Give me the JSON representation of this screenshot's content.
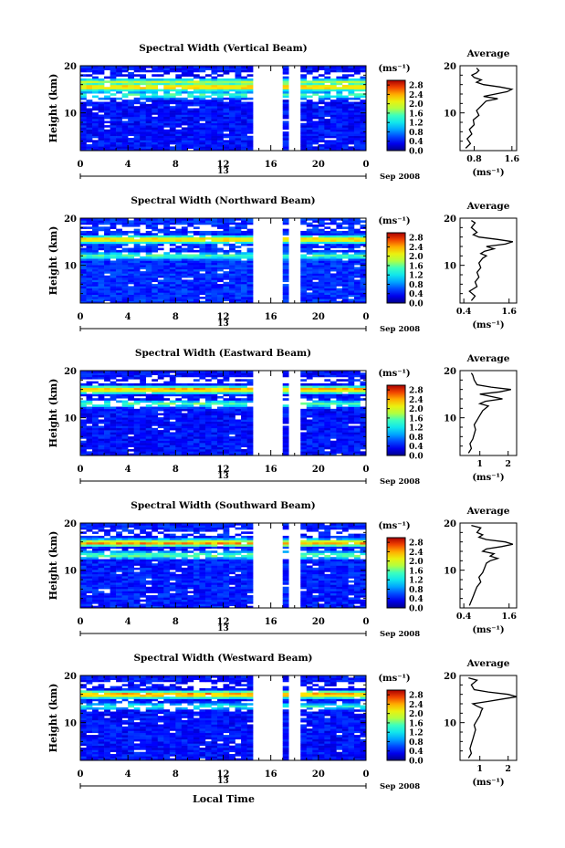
{
  "figure": {
    "xlabel": "Local Time",
    "date_label": "Sep 2008",
    "day_label": "13",
    "unit_label": "(ms⁻¹)",
    "profile_title": "Average",
    "ylabel": "Height (km)"
  },
  "chart_data": [
    {
      "type": "heatmap",
      "title": "Spectral Width (Vertical Beam)",
      "xlabel": "Local Time",
      "ylabel": "Height (km)",
      "x_ticks": [
        "0",
        "4",
        "8",
        "12",
        "16",
        "20",
        "0"
      ],
      "y_ticks": [
        "10",
        "20"
      ],
      "xlim": [
        0,
        24
      ],
      "ylim": [
        2,
        20
      ],
      "colorbar": {
        "label": "(ms⁻¹)",
        "ticks": [
          "0.0",
          "0.4",
          "0.8",
          "1.2",
          "1.6",
          "2.0",
          "2.4",
          "2.8"
        ],
        "range": [
          0,
          3.0
        ]
      },
      "data_gaps_hours": [
        [
          14.5,
          16.8
        ],
        [
          17.4,
          18.6
        ]
      ],
      "layers": [
        {
          "height_km": 15.5,
          "value": 2.6
        },
        {
          "height_km": 16.5,
          "value": 2.0
        },
        {
          "height_km": 13.8,
          "value": 1.6
        }
      ],
      "background_value": 0.4,
      "average_profile": {
        "title": "Average",
        "xlabel": "(ms⁻¹)",
        "xticks": [
          "0.8",
          "1.6"
        ],
        "xlim": [
          0.5,
          1.7
        ],
        "height_km": [
          2.5,
          3.5,
          4.5,
          5.5,
          6.5,
          7.5,
          8.5,
          9.5,
          10.5,
          11.5,
          12.5,
          13,
          13.5,
          14,
          14.5,
          15,
          15.5,
          16,
          16.5,
          17,
          17.5,
          18,
          18.5,
          19,
          19.5
        ],
        "values": [
          0.62,
          0.72,
          0.65,
          0.75,
          0.7,
          0.8,
          0.78,
          0.9,
          0.85,
          0.95,
          1.05,
          1.3,
          1.0,
          1.25,
          1.5,
          1.6,
          1.35,
          1.0,
          0.85,
          0.95,
          0.8,
          0.75,
          0.85,
          0.9,
          0.85
        ]
      }
    },
    {
      "type": "heatmap",
      "title": "Spectral Width (Northward Beam)",
      "xlabel": "Local Time",
      "ylabel": "Height (km)",
      "x_ticks": [
        "0",
        "4",
        "8",
        "12",
        "16",
        "20",
        "0"
      ],
      "y_ticks": [
        "10",
        "20"
      ],
      "xlim": [
        0,
        24
      ],
      "ylim": [
        2,
        20
      ],
      "colorbar": {
        "label": "(ms⁻¹)",
        "ticks": [
          "0.0",
          "0.4",
          "0.8",
          "1.2",
          "1.6",
          "2.0",
          "2.4",
          "2.8"
        ],
        "range": [
          0,
          3.0
        ]
      },
      "data_gaps_hours": [
        [
          14.5,
          16.8
        ],
        [
          17.4,
          18.6
        ]
      ],
      "layers": [
        {
          "height_km": 15.5,
          "value": 2.6
        },
        {
          "height_km": 12.0,
          "value": 1.6
        }
      ],
      "background_value": 0.5,
      "average_profile": {
        "title": "Average",
        "xlabel": "(ms⁻¹)",
        "xticks": [
          "0.4",
          "1.6"
        ],
        "xlim": [
          0.3,
          1.8
        ],
        "height_km": [
          2.5,
          3.5,
          4.5,
          5.5,
          6.5,
          7.5,
          8.5,
          9.5,
          10.5,
          11.5,
          12,
          12.5,
          13,
          13.5,
          14,
          14.5,
          15,
          15.5,
          16,
          16.5,
          17,
          18,
          19,
          19.5
        ],
        "values": [
          0.6,
          0.7,
          0.55,
          0.75,
          0.7,
          0.8,
          0.75,
          0.85,
          0.8,
          0.9,
          1.0,
          0.85,
          0.95,
          1.2,
          1.0,
          1.5,
          1.7,
          1.3,
          0.8,
          0.65,
          0.75,
          0.6,
          0.7,
          0.6
        ]
      }
    },
    {
      "type": "heatmap",
      "title": "Spectral Width (Eastward Beam)",
      "xlabel": "Local Time",
      "ylabel": "Height (km)",
      "x_ticks": [
        "0",
        "4",
        "8",
        "12",
        "16",
        "20",
        "0"
      ],
      "y_ticks": [
        "10",
        "20"
      ],
      "xlim": [
        0,
        24
      ],
      "ylim": [
        2,
        20
      ],
      "colorbar": {
        "label": "(ms⁻¹)",
        "ticks": [
          "0.0",
          "0.4",
          "0.8",
          "1.2",
          "1.6",
          "2.0",
          "2.4",
          "2.8"
        ],
        "range": [
          0,
          3.0
        ]
      },
      "data_gaps_hours": [
        [
          14.5,
          16.8
        ],
        [
          17.4,
          18.6
        ]
      ],
      "layers": [
        {
          "height_km": 16.0,
          "value": 2.7
        },
        {
          "height_km": 13.0,
          "value": 1.6
        }
      ],
      "background_value": 0.4,
      "average_profile": {
        "title": "Average",
        "xlabel": "(ms⁻¹)",
        "xticks": [
          "1",
          "2"
        ],
        "xlim": [
          0.3,
          2.3
        ],
        "height_km": [
          2.5,
          3.5,
          4.5,
          5.5,
          6.5,
          7.5,
          8.5,
          9.5,
          10.5,
          11.5,
          12.5,
          13,
          13.5,
          14,
          14.5,
          15,
          15.5,
          16,
          16.5,
          17,
          18,
          19,
          19.5
        ],
        "values": [
          0.6,
          0.7,
          0.65,
          0.75,
          0.8,
          0.85,
          0.8,
          0.9,
          1.0,
          1.1,
          1.3,
          1.0,
          1.2,
          1.8,
          1.4,
          1.0,
          1.7,
          2.1,
          1.4,
          0.9,
          0.8,
          0.75,
          0.7
        ]
      }
    },
    {
      "type": "heatmap",
      "title": "Spectral Width (Southward Beam)",
      "xlabel": "Local Time",
      "ylabel": "Height (km)",
      "x_ticks": [
        "0",
        "4",
        "8",
        "12",
        "16",
        "20",
        "0"
      ],
      "y_ticks": [
        "10",
        "20"
      ],
      "xlim": [
        0,
        24
      ],
      "ylim": [
        2,
        20
      ],
      "colorbar": {
        "label": "(ms⁻¹)",
        "ticks": [
          "0.0",
          "0.4",
          "0.8",
          "1.2",
          "1.6",
          "2.0",
          "2.4",
          "2.8"
        ],
        "range": [
          0,
          3.0
        ]
      },
      "data_gaps_hours": [
        [
          14.5,
          16.8
        ],
        [
          17.4,
          18.6
        ]
      ],
      "layers": [
        {
          "height_km": 15.8,
          "value": 2.6
        },
        {
          "height_km": 13.2,
          "value": 1.8
        }
      ],
      "background_value": 0.45,
      "average_profile": {
        "title": "Average",
        "xlabel": "(ms⁻¹)",
        "xticks": [
          "0.4",
          "1.6"
        ],
        "xlim": [
          0.3,
          1.8
        ],
        "height_km": [
          2.5,
          3.5,
          4.5,
          5.5,
          6.5,
          7.5,
          8.5,
          9.5,
          10.5,
          11.5,
          12,
          12.5,
          13,
          13.5,
          14,
          14.5,
          15,
          15.5,
          16,
          16.5,
          17,
          17.5,
          18,
          19,
          19.5
        ],
        "values": [
          0.55,
          0.6,
          0.65,
          0.7,
          0.75,
          0.85,
          0.8,
          0.9,
          0.95,
          1.0,
          1.1,
          1.3,
          1.1,
          1.2,
          0.9,
          1.0,
          1.4,
          1.7,
          1.5,
          1.0,
          0.8,
          0.9,
          0.75,
          0.85,
          0.6
        ]
      }
    },
    {
      "type": "heatmap",
      "title": "Spectral Width (Westward Beam)",
      "xlabel": "Local Time",
      "ylabel": "Height (km)",
      "x_ticks": [
        "0",
        "4",
        "8",
        "12",
        "16",
        "20",
        "0"
      ],
      "y_ticks": [
        "10",
        "20"
      ],
      "xlim": [
        0,
        24
      ],
      "ylim": [
        2,
        20
      ],
      "colorbar": {
        "label": "(ms⁻¹)",
        "ticks": [
          "0.0",
          "0.4",
          "0.8",
          "1.2",
          "1.6",
          "2.0",
          "2.4",
          "2.8"
        ],
        "range": [
          0,
          3.0
        ]
      },
      "data_gaps_hours": [
        [
          14.5,
          16.8
        ],
        [
          17.4,
          18.6
        ]
      ],
      "layers": [
        {
          "height_km": 16.0,
          "value": 2.8
        },
        {
          "height_km": 13.5,
          "value": 1.4
        }
      ],
      "background_value": 0.4,
      "average_profile": {
        "title": "Average",
        "xlabel": "(ms⁻¹)",
        "xticks": [
          "1",
          "2"
        ],
        "xlim": [
          0.3,
          2.3
        ],
        "height_km": [
          2.5,
          3.5,
          4.5,
          5.5,
          6.5,
          7.5,
          8.5,
          9.5,
          10.5,
          11.5,
          12.5,
          13,
          13.5,
          14,
          14.5,
          15,
          15.5,
          16,
          16.5,
          17,
          18,
          19,
          19.5
        ],
        "values": [
          0.6,
          0.7,
          0.65,
          0.7,
          0.75,
          0.8,
          0.85,
          0.8,
          0.9,
          1.0,
          1.05,
          1.1,
          0.9,
          0.75,
          1.3,
          1.8,
          2.3,
          2.0,
          1.3,
          0.8,
          0.7,
          0.9,
          0.6
        ]
      }
    }
  ]
}
